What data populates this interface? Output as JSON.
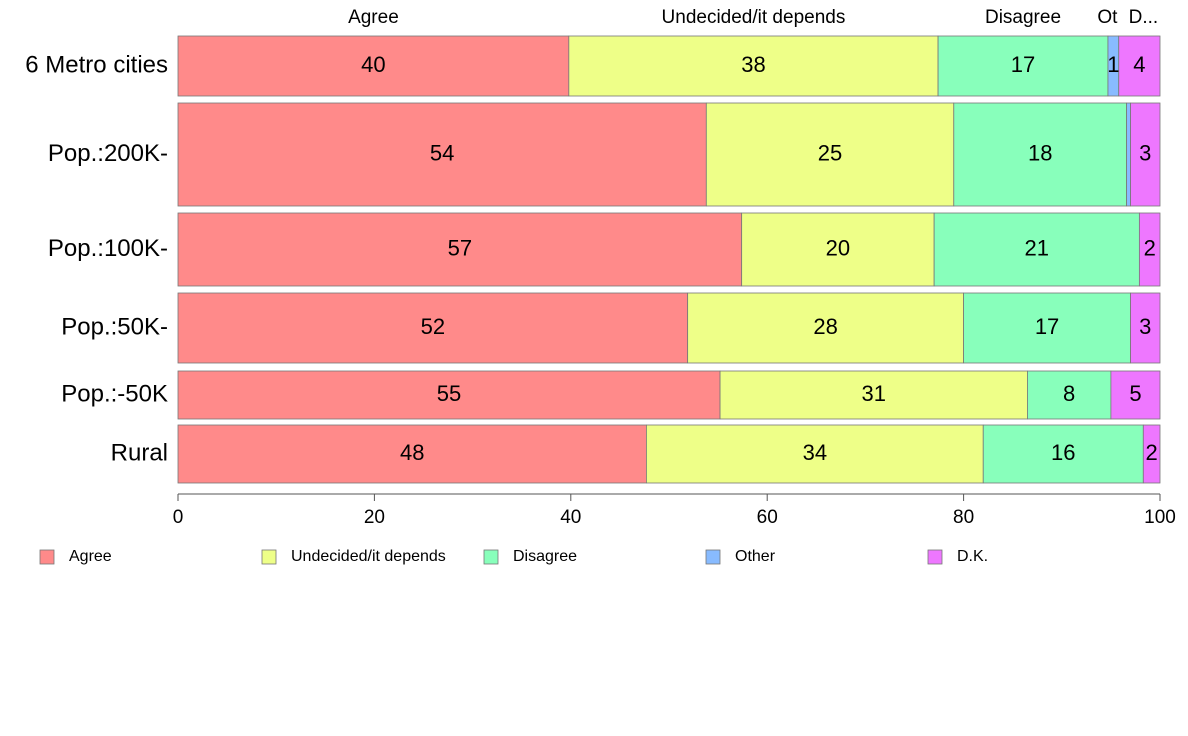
{
  "chart_data": {
    "type": "bar",
    "orientation": "horizontal",
    "stacked": true,
    "categories": [
      "6 Metro cities",
      "Pop.:200K-",
      "Pop.:100K-",
      "Pop.:50K-",
      "Pop.:-50K",
      "Rural"
    ],
    "series": [
      {
        "name": "Agree",
        "color": "#ff8a8a",
        "values": [
          39.8,
          53.8,
          57.4,
          51.9,
          55.2,
          47.7
        ]
      },
      {
        "name": "Undecided/it depends",
        "color": "#eeff88",
        "values": [
          37.6,
          25.2,
          19.6,
          28.1,
          31.3,
          34.3
        ]
      },
      {
        "name": "Disagree",
        "color": "#88ffbb",
        "values": [
          17.3,
          17.6,
          20.9,
          17.0,
          8.5,
          16.3
        ]
      },
      {
        "name": "Other",
        "color": "#88bbff",
        "values": [
          1.1,
          0.4,
          0.0,
          0.0,
          0.0,
          0.0
        ]
      },
      {
        "name": "D.K.",
        "color": "#ee77ff",
        "values": [
          4.2,
          3.0,
          2.1,
          3.0,
          5.0,
          1.7
        ]
      }
    ],
    "value_labels": [
      [
        "40",
        "38",
        "17",
        "1",
        "4"
      ],
      [
        "54",
        "25",
        "18",
        "",
        "3"
      ],
      [
        "57",
        "20",
        "21",
        "",
        "2"
      ],
      [
        "52",
        "28",
        "17",
        "",
        "3"
      ],
      [
        "55",
        "31",
        "8",
        "",
        "5"
      ],
      [
        "48",
        "34",
        "16",
        "",
        "2"
      ]
    ],
    "top_labels": [
      "Agree",
      "Undecided/it depends",
      "Disagree",
      "Ot",
      "D..."
    ],
    "xlim": [
      0,
      100
    ],
    "x_ticks": [
      "0",
      "20",
      "40",
      "60",
      "80",
      "100"
    ],
    "grid": false,
    "legend_position": "bottom"
  }
}
